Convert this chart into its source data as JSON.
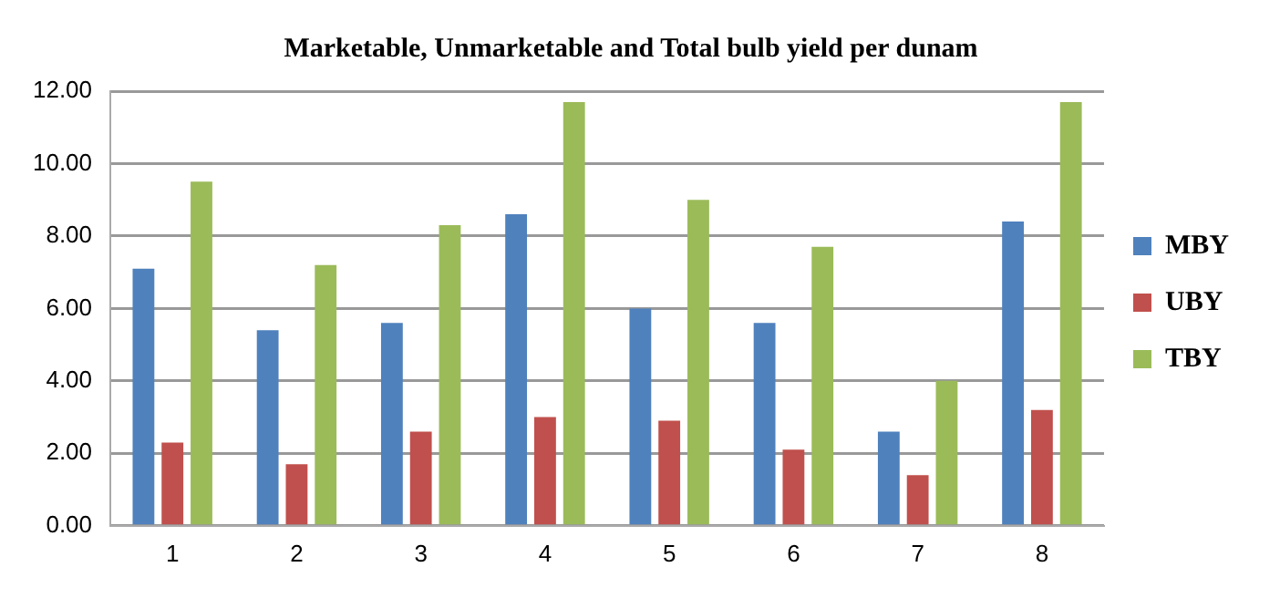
{
  "chart_data": {
    "type": "bar",
    "title": "Marketable, Unmarketable and Total bulb yield per dunam",
    "categories": [
      "1",
      "2",
      "3",
      "4",
      "5",
      "6",
      "7",
      "8"
    ],
    "series": [
      {
        "name": "MBY",
        "color": "#4f81bd",
        "values": [
          7.1,
          5.4,
          5.6,
          8.6,
          6.0,
          5.6,
          2.6,
          8.4
        ]
      },
      {
        "name": "UBY",
        "color": "#c0504d",
        "values": [
          2.3,
          1.7,
          2.6,
          3.0,
          2.9,
          2.1,
          1.4,
          3.2
        ]
      },
      {
        "name": "TBY",
        "color": "#9bbb59",
        "values": [
          9.5,
          7.2,
          8.3,
          11.7,
          9.0,
          7.7,
          4.0,
          11.7
        ]
      }
    ],
    "ylim": [
      0,
      12
    ],
    "yticks": [
      {
        "value": 0,
        "label": "0.00"
      },
      {
        "value": 2,
        "label": "2.00"
      },
      {
        "value": 4,
        "label": "4.00"
      },
      {
        "value": 6,
        "label": "6.00"
      },
      {
        "value": 8,
        "label": "8.00"
      },
      {
        "value": 10,
        "label": "10.00"
      },
      {
        "value": 12,
        "label": "12.00"
      }
    ],
    "grid": "y",
    "legend": "right"
  }
}
